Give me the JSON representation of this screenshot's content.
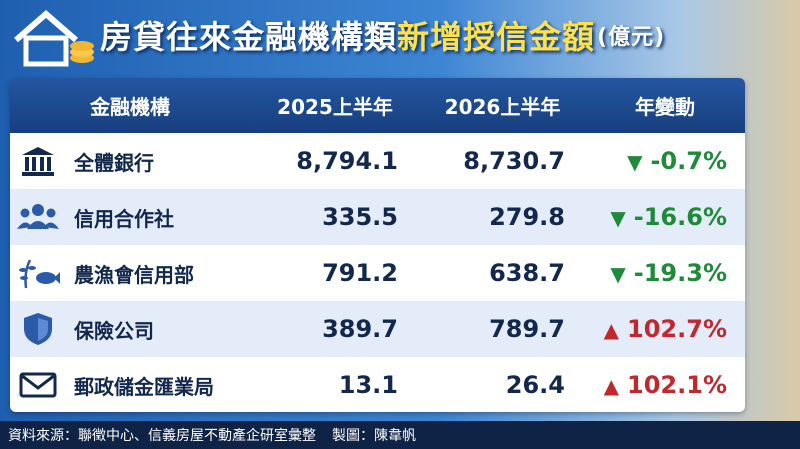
{
  "header": {
    "title": "房貸往來金融機構類",
    "highlight": "新增授信金額",
    "unit": "(億元)"
  },
  "table": {
    "columns": [
      "金融機構",
      "2025上半年",
      "2026上半年",
      "年變動"
    ],
    "rows": [
      [
        "全體銀行",
        "8,794.1",
        "8,730.7",
        "-0.7%"
      ],
      [
        "信用合作社",
        "335.5",
        "279.8",
        "-16.6%"
      ],
      [
        "農漁會信用部",
        "791.2",
        "638.7",
        "-19.3%"
      ],
      [
        "保險公司",
        "389.7",
        "789.7",
        "102.7%"
      ],
      [
        "郵政儲金匯業局",
        "13.1",
        "26.4",
        "102.1%"
      ]
    ]
  },
  "footer": {
    "source": "資料來源：聯徵中心、信義房屋不動產企研室彙整",
    "credit": "製圖：陳韋帆"
  }
}
